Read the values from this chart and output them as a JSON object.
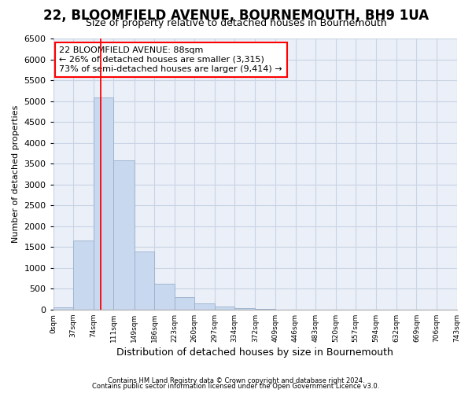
{
  "title_line1": "22, BLOOMFIELD AVENUE, BOURNEMOUTH, BH9 1UA",
  "title_line2": "Size of property relative to detached houses in Bournemouth",
  "xlabel": "Distribution of detached houses by size in Bournemouth",
  "ylabel": "Number of detached properties",
  "footnote1": "Contains HM Land Registry data © Crown copyright and database right 2024.",
  "footnote2": "Contains public sector information licensed under the Open Government Licence v3.0.",
  "annotation_title": "22 BLOOMFIELD AVENUE: 88sqm",
  "annotation_line1": "← 26% of detached houses are smaller (3,315)",
  "annotation_line2": "73% of semi-detached houses are larger (9,414) →",
  "property_size": 88,
  "bar_color": "#c8d8ee",
  "bar_edge_color": "#9ab0cc",
  "redline_color": "red",
  "grid_color": "#c8d4e4",
  "background_color": "#eaeff8",
  "ylim": [
    0,
    6500
  ],
  "yticks": [
    0,
    500,
    1000,
    1500,
    2000,
    2500,
    3000,
    3500,
    4000,
    4500,
    5000,
    5500,
    6000,
    6500
  ],
  "bin_edges": [
    0,
    37,
    74,
    111,
    149,
    186,
    223,
    260,
    297,
    334,
    372,
    409,
    446,
    483,
    520,
    557,
    594,
    632,
    669,
    706,
    743
  ],
  "bin_labels": [
    "0sqm",
    "37sqm",
    "74sqm",
    "111sqm",
    "149sqm",
    "186sqm",
    "223sqm",
    "260sqm",
    "297sqm",
    "334sqm",
    "372sqm",
    "409sqm",
    "446sqm",
    "483sqm",
    "520sqm",
    "557sqm",
    "594sqm",
    "632sqm",
    "669sqm",
    "706sqm",
    "743sqm"
  ],
  "bar_heights": [
    60,
    1650,
    5080,
    3580,
    1400,
    610,
    290,
    140,
    80,
    40,
    10,
    3,
    2,
    1,
    0,
    0,
    0,
    0,
    0,
    0
  ]
}
